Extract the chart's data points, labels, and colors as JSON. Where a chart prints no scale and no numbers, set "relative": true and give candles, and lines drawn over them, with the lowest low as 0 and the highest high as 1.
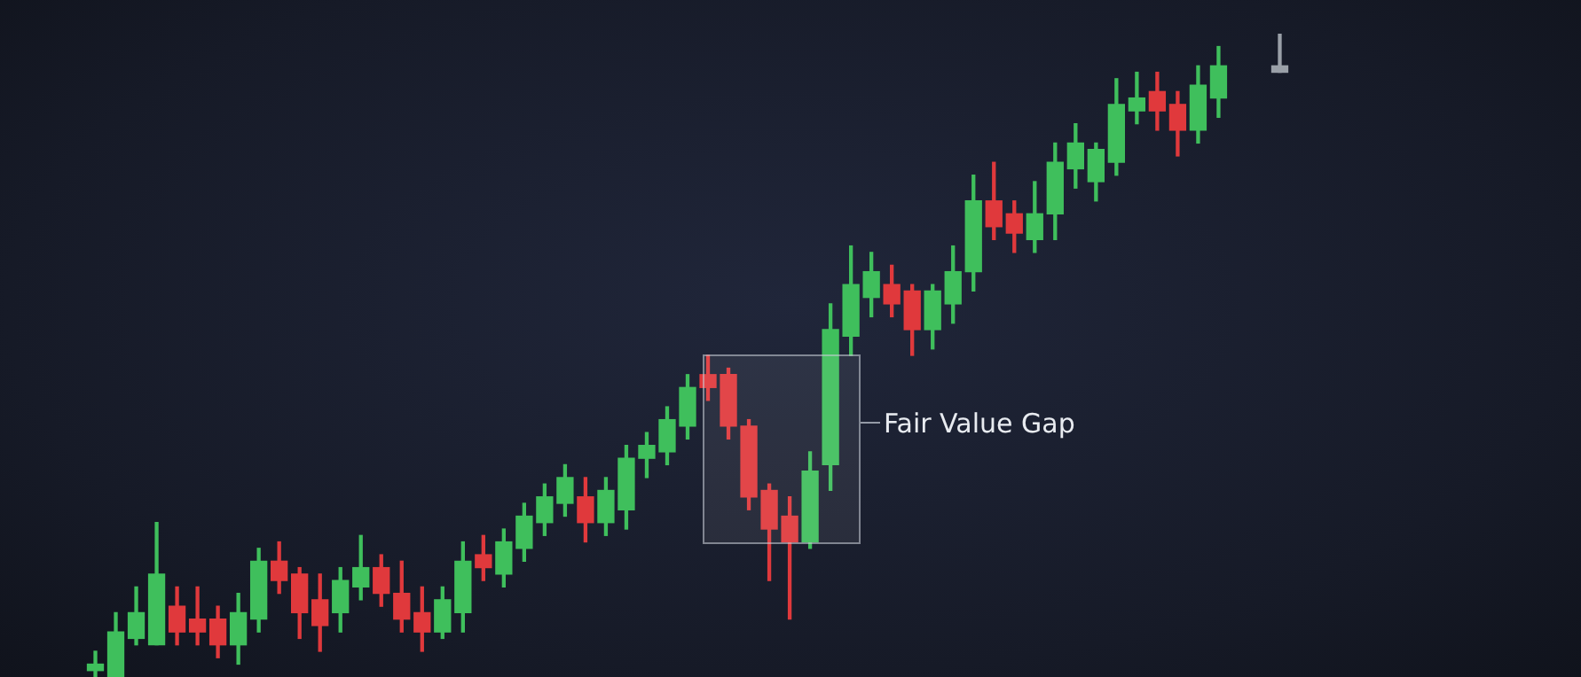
{
  "chart_data": {
    "type": "candlestick",
    "relative": true,
    "categories": [
      null,
      null,
      null,
      null,
      null,
      null,
      null,
      null,
      null,
      null,
      null,
      null,
      null,
      null,
      null,
      null,
      null,
      null,
      null,
      null,
      null,
      null,
      null,
      null,
      null,
      null,
      null,
      null,
      null,
      null,
      null,
      null,
      null,
      null,
      null,
      null,
      null,
      null,
      null,
      null,
      null,
      null,
      null,
      null,
      null,
      null,
      null,
      null,
      null,
      null,
      null,
      null,
      null,
      null,
      null,
      null,
      null,
      null,
      null
    ],
    "ohlc": [
      [
        0.01,
        0.04,
        0,
        0.02
      ],
      [
        0,
        0.1,
        0,
        0.07
      ],
      [
        0.06,
        0.14,
        0.05,
        0.1
      ],
      [
        0.05,
        0.24,
        0.05,
        0.16
      ],
      [
        0.11,
        0.14,
        0.05,
        0.07
      ],
      [
        0.09,
        0.14,
        0.05,
        0.07
      ],
      [
        0.09,
        0.11,
        0.03,
        0.05
      ],
      [
        0.05,
        0.13,
        0.02,
        0.1
      ],
      [
        0.09,
        0.2,
        0.07,
        0.18
      ],
      [
        0.18,
        0.21,
        0.13,
        0.15
      ],
      [
        0.16,
        0.17,
        0.06,
        0.1
      ],
      [
        0.12,
        0.16,
        0.04,
        0.08
      ],
      [
        0.1,
        0.17,
        0.07,
        0.15
      ],
      [
        0.14,
        0.22,
        0.12,
        0.17
      ],
      [
        0.17,
        0.19,
        0.11,
        0.13
      ],
      [
        0.13,
        0.18,
        0.07,
        0.09
      ],
      [
        0.1,
        0.14,
        0.04,
        0.07
      ],
      [
        0.07,
        0.14,
        0.06,
        0.12
      ],
      [
        0.1,
        0.21,
        0.07,
        0.18
      ],
      [
        0.19,
        0.22,
        0.15,
        0.17
      ],
      [
        0.16,
        0.23,
        0.14,
        0.21
      ],
      [
        0.2,
        0.27,
        0.18,
        0.25
      ],
      [
        0.24,
        0.3,
        0.22,
        0.28
      ],
      [
        0.27,
        0.33,
        0.25,
        0.31
      ],
      [
        0.28,
        0.31,
        0.21,
        0.24
      ],
      [
        0.24,
        0.31,
        0.22,
        0.29
      ],
      [
        0.26,
        0.36,
        0.23,
        0.34
      ],
      [
        0.34,
        0.38,
        0.31,
        0.36
      ],
      [
        0.35,
        0.42,
        0.33,
        0.4
      ],
      [
        0.39,
        0.47,
        0.37,
        0.45
      ],
      [
        0.47,
        0.5,
        0.43,
        0.45
      ],
      [
        0.47,
        0.48,
        0.37,
        0.39
      ],
      [
        0.39,
        0.4,
        0.26,
        0.28
      ],
      [
        0.29,
        0.3,
        0.15,
        0.23
      ],
      [
        0.25,
        0.28,
        0.09,
        0.21
      ],
      [
        0.21,
        0.35,
        0.2,
        0.32
      ],
      [
        0.33,
        0.58,
        0.29,
        0.54
      ],
      [
        0.53,
        0.67,
        0.5,
        0.61
      ],
      [
        0.59,
        0.66,
        0.56,
        0.63
      ],
      [
        0.61,
        0.64,
        0.56,
        0.58
      ],
      [
        0.6,
        0.61,
        0.5,
        0.54
      ],
      [
        0.54,
        0.61,
        0.51,
        0.6
      ],
      [
        0.58,
        0.67,
        0.55,
        0.63
      ],
      [
        0.63,
        0.78,
        0.6,
        0.74
      ],
      [
        0.74,
        0.8,
        0.68,
        0.7
      ],
      [
        0.72,
        0.74,
        0.66,
        0.69
      ],
      [
        0.68,
        0.77,
        0.66,
        0.72
      ],
      [
        0.72,
        0.83,
        0.68,
        0.8
      ],
      [
        0.79,
        0.86,
        0.76,
        0.83
      ],
      [
        0.77,
        0.83,
        0.74,
        0.82
      ],
      [
        0.8,
        0.93,
        0.78,
        0.89
      ],
      [
        0.88,
        0.94,
        0.86,
        0.9
      ],
      [
        0.91,
        0.94,
        0.85,
        0.88
      ],
      [
        0.89,
        0.91,
        0.81,
        0.85
      ],
      [
        0.85,
        0.95,
        0.83,
        0.92
      ],
      [
        0.9,
        0.98,
        0.87,
        0.95
      ],
      null,
      null,
      [
        0.94,
        1,
        0.94,
        0.95
      ]
    ],
    "colors": [
      "#3fbf5c",
      "#3fbf5c",
      "#3fbf5c",
      "#3fbf5c",
      "#e0393c",
      "#e0393c",
      "#e0393c",
      "#3fbf5c",
      "#3fbf5c",
      "#e0393c",
      "#e0393c",
      "#e0393c",
      "#3fbf5c",
      "#3fbf5c",
      "#e0393c",
      "#e0393c",
      "#e0393c",
      "#3fbf5c",
      "#3fbf5c",
      "#e0393c",
      "#3fbf5c",
      "#3fbf5c",
      "#3fbf5c",
      "#3fbf5c",
      "#e0393c",
      "#3fbf5c",
      "#3fbf5c",
      "#3fbf5c",
      "#3fbf5c",
      "#3fbf5c",
      "#e0393c",
      "#e0393c",
      "#e0393c",
      "#e0393c",
      "#e0393c",
      "#3fbf5c",
      "#3fbf5c",
      "#3fbf5c",
      "#3fbf5c",
      "#e0393c",
      "#e0393c",
      "#3fbf5c",
      "#3fbf5c",
      "#3fbf5c",
      "#e0393c",
      "#e0393c",
      "#3fbf5c",
      "#3fbf5c",
      "#3fbf5c",
      "#3fbf5c",
      "#3fbf5c",
      "#3fbf5c",
      "#e0393c",
      "#e0393c",
      "#3fbf5c",
      "#3fbf5c",
      null,
      null,
      "#9aa0a8"
    ],
    "annotations": [
      "Fair Value Gap"
    ]
  }
}
